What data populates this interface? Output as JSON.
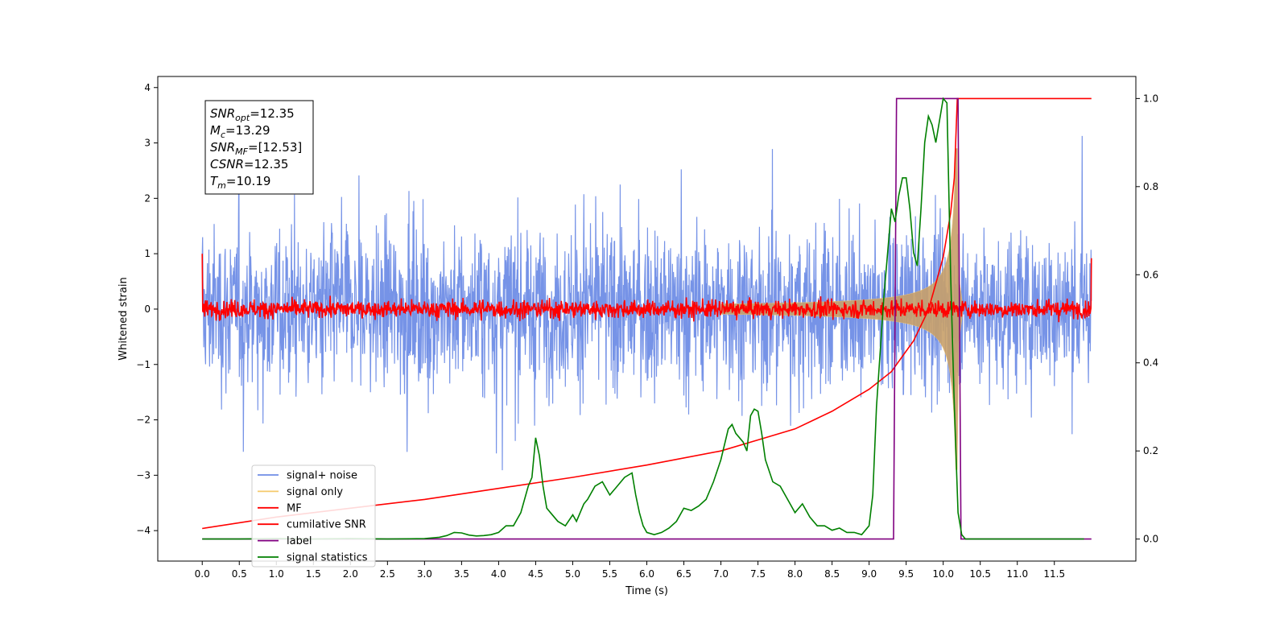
{
  "chart_data": {
    "type": "line",
    "xlabel": "Time (s)",
    "ylabel": "Whitened strain",
    "xlim": [
      -0.6,
      12.6
    ],
    "ylim": [
      -4.55,
      4.2
    ],
    "y2lim": [
      -0.05,
      1.05
    ],
    "x_ticks": [
      "0.0",
      "0.5",
      "1.0",
      "1.5",
      "2.0",
      "2.5",
      "3.0",
      "3.5",
      "4.0",
      "4.5",
      "5.0",
      "5.5",
      "6.0",
      "6.5",
      "7.0",
      "7.5",
      "8.0",
      "8.5",
      "9.0",
      "9.5",
      "10.0",
      "10.5",
      "11.0",
      "11.5"
    ],
    "x_tick_values": [
      0,
      0.5,
      1,
      1.5,
      2,
      2.5,
      3,
      3.5,
      4,
      4.5,
      5,
      5.5,
      6,
      6.5,
      7,
      7.5,
      8,
      8.5,
      9,
      9.5,
      10,
      10.5,
      11,
      11.5
    ],
    "y_ticks": [
      "4",
      "3",
      "2",
      "1",
      "0",
      "−1",
      "−2",
      "−3",
      "−4"
    ],
    "y_tick_values": [
      4,
      3,
      2,
      1,
      0,
      -1,
      -2,
      -3,
      -4
    ],
    "y2_ticks": [
      "1.0",
      "0.8",
      "0.6",
      "0.4",
      "0.2",
      "0.0"
    ],
    "y2_tick_values": [
      1.0,
      0.8,
      0.6,
      0.4,
      0.2,
      0.0
    ],
    "stats_box": [
      {
        "name": "SNR",
        "sub": "opt",
        "value": "=12.35"
      },
      {
        "name": "M",
        "sub": "c",
        "value": "=13.29"
      },
      {
        "name": "SNR",
        "sub": "MF",
        "value": "=[12.53]"
      },
      {
        "name": "CSNR",
        "sub": "",
        "value": "=12.35"
      },
      {
        "name": "T",
        "sub": "m",
        "value": "=10.19"
      }
    ],
    "legend_placement": "lower-left",
    "series": [
      {
        "name": "signal+ noise",
        "color": "#6f8de6",
        "axis": "left",
        "kind": "noise",
        "x_range": [
          0,
          12
        ],
        "amplitude": 1.3
      },
      {
        "name": "signal only",
        "color": "#f5c96b",
        "axis": "left",
        "kind": "chirp",
        "t_merge": 10.19,
        "peak": 2.9
      },
      {
        "name": "MF",
        "color": "#ff0000",
        "axis": "left",
        "kind": "mf",
        "x_range": [
          0,
          12
        ],
        "amplitude": 0.08,
        "edge_values": [
          1.0,
          0.92
        ]
      },
      {
        "name": "cumilative SNR",
        "color": "#ff0000",
        "axis": "right",
        "x": [
          0,
          1,
          2,
          3,
          4,
          5,
          6,
          7,
          7.5,
          8,
          8.5,
          9,
          9.3,
          9.6,
          9.8,
          10.0,
          10.1,
          10.15,
          10.19,
          12
        ],
        "y": [
          0.024,
          0.05,
          0.07,
          0.09,
          0.115,
          0.14,
          0.168,
          0.2,
          0.225,
          0.25,
          0.29,
          0.34,
          0.38,
          0.45,
          0.52,
          0.64,
          0.74,
          0.82,
          1.0,
          1.0
        ]
      },
      {
        "name": "label",
        "color": "#800080",
        "axis": "right",
        "x": [
          0,
          9.33,
          9.37,
          10.2,
          10.24,
          12
        ],
        "y": [
          0,
          0,
          1,
          1,
          0,
          0
        ]
      },
      {
        "name": "signal statistics",
        "color": "#008000",
        "axis": "right",
        "x": [
          0,
          0.5,
          1,
          1.5,
          2,
          2.5,
          3,
          3.2,
          3.3,
          3.4,
          3.5,
          3.6,
          3.7,
          3.8,
          3.9,
          4.0,
          4.1,
          4.2,
          4.3,
          4.4,
          4.45,
          4.5,
          4.55,
          4.6,
          4.65,
          4.7,
          4.8,
          4.9,
          5.0,
          5.05,
          5.1,
          5.15,
          5.2,
          5.3,
          5.4,
          5.5,
          5.6,
          5.7,
          5.8,
          5.85,
          5.9,
          5.95,
          6.0,
          6.1,
          6.2,
          6.3,
          6.4,
          6.5,
          6.6,
          6.7,
          6.8,
          6.9,
          7.0,
          7.1,
          7.15,
          7.2,
          7.3,
          7.35,
          7.4,
          7.45,
          7.5,
          7.55,
          7.6,
          7.7,
          7.8,
          7.9,
          8.0,
          8.1,
          8.2,
          8.3,
          8.4,
          8.5,
          8.6,
          8.7,
          8.8,
          8.9,
          9.0,
          9.05,
          9.1,
          9.2,
          9.3,
          9.35,
          9.4,
          9.45,
          9.5,
          9.55,
          9.6,
          9.65,
          9.7,
          9.75,
          9.8,
          9.85,
          9.9,
          9.95,
          10.0,
          10.05,
          10.1,
          10.15,
          10.2,
          10.25,
          10.3,
          11.5,
          11.9
        ],
        "y": [
          0,
          0,
          0.001,
          0,
          0.001,
          0,
          0.001,
          0.004,
          0.008,
          0.015,
          0.014,
          0.009,
          0.007,
          0.008,
          0.01,
          0.015,
          0.03,
          0.03,
          0.06,
          0.12,
          0.14,
          0.23,
          0.19,
          0.12,
          0.07,
          0.06,
          0.04,
          0.03,
          0.055,
          0.04,
          0.06,
          0.08,
          0.09,
          0.12,
          0.13,
          0.1,
          0.12,
          0.14,
          0.15,
          0.1,
          0.06,
          0.03,
          0.015,
          0.01,
          0.015,
          0.025,
          0.04,
          0.07,
          0.065,
          0.075,
          0.09,
          0.13,
          0.18,
          0.25,
          0.26,
          0.24,
          0.22,
          0.2,
          0.28,
          0.295,
          0.29,
          0.24,
          0.18,
          0.13,
          0.12,
          0.09,
          0.06,
          0.08,
          0.05,
          0.03,
          0.03,
          0.02,
          0.025,
          0.015,
          0.015,
          0.01,
          0.03,
          0.1,
          0.3,
          0.55,
          0.75,
          0.72,
          0.78,
          0.82,
          0.82,
          0.75,
          0.65,
          0.62,
          0.75,
          0.9,
          0.96,
          0.94,
          0.9,
          0.95,
          1.0,
          0.99,
          0.6,
          0.3,
          0.06,
          0.01,
          0.0,
          0.0,
          0.0
        ]
      }
    ]
  }
}
